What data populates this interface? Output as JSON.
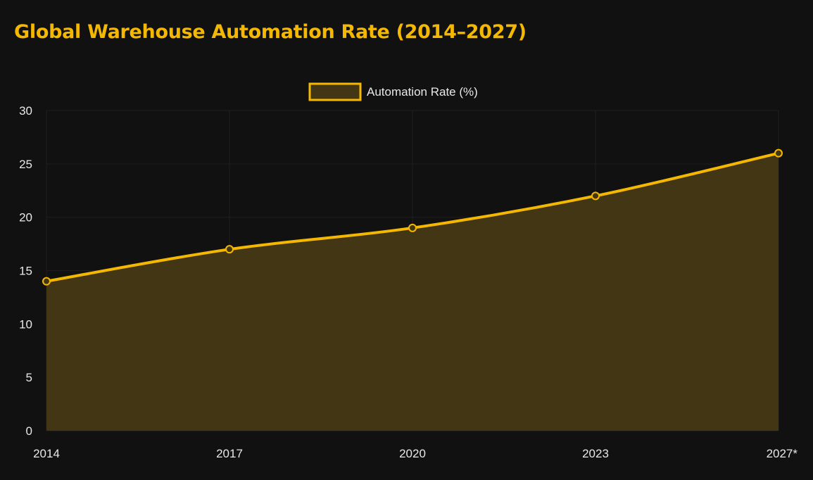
{
  "page": {
    "title": "Global Warehouse Automation Rate (2014–2027)"
  },
  "colors": {
    "background": "#111111",
    "accent": "#f5b800",
    "area_fill": "#433614",
    "grid": "#1e1e1e",
    "text": "#e8e8e8"
  },
  "chart_data": {
    "type": "area",
    "title": "Global Warehouse Automation Rate (2014–2027)",
    "categories": [
      "2014",
      "2017",
      "2020",
      "2023",
      "2027*"
    ],
    "series": [
      {
        "name": "Automation Rate (%)",
        "values": [
          14,
          17,
          19,
          22,
          26
        ]
      }
    ],
    "ylim": [
      0,
      30
    ],
    "yticks": [
      0,
      5,
      10,
      15,
      20,
      25,
      30
    ],
    "grid": true,
    "legend": "top-center",
    "xlabel": "",
    "ylabel": ""
  }
}
